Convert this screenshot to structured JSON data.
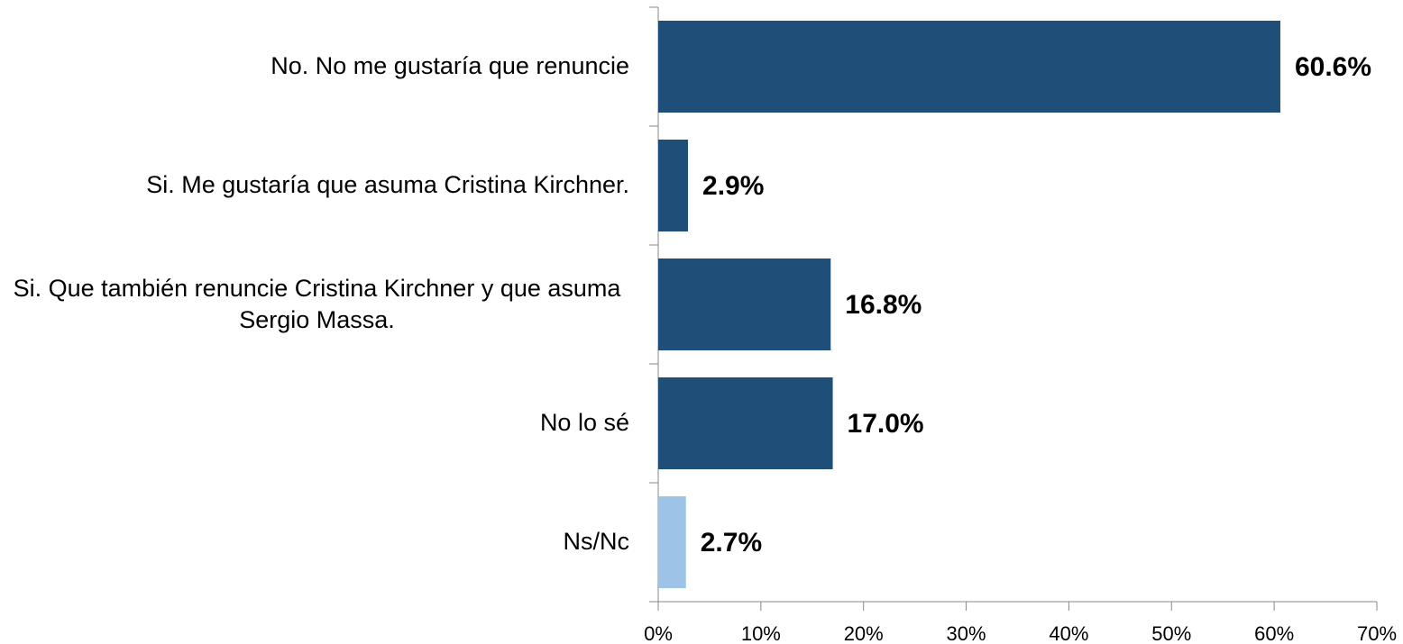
{
  "chart_data": {
    "type": "hbar",
    "categories": [
      "No. No me gustaría que renuncie",
      "Si. Me gustaría que asuma Cristina Kirchner.",
      "Si. Que también renuncie Cristina Kirchner y que asuma Sergio Massa.",
      "No lo sé",
      "Ns/Nc"
    ],
    "values": [
      60.6,
      2.9,
      16.8,
      17.0,
      2.7
    ],
    "value_labels": [
      "60.6%",
      "2.9%",
      "16.8%",
      "17.0%",
      "2.7%"
    ],
    "colors": [
      "#1f4e79",
      "#1f4e79",
      "#1f4e79",
      "#1f4e79",
      "#9dc3e6"
    ],
    "xlim": [
      0,
      70
    ],
    "xticks": [
      {
        "value": 0,
        "label": "0%"
      },
      {
        "value": 10,
        "label": "10%"
      },
      {
        "value": 20,
        "label": "20%"
      },
      {
        "value": 30,
        "label": "30%"
      },
      {
        "value": 40,
        "label": "40%"
      },
      {
        "value": 50,
        "label": "50%"
      },
      {
        "value": 60,
        "label": "60%"
      },
      {
        "value": 70,
        "label": "70%"
      }
    ],
    "grid": false
  }
}
